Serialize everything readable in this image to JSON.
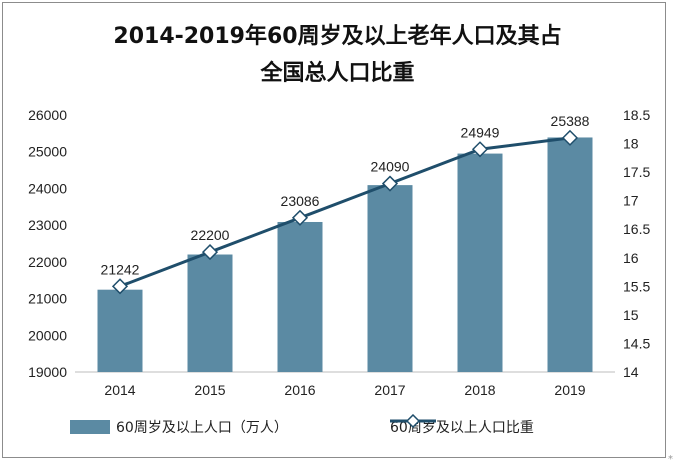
{
  "title_line1": "2014-2019年60周岁及以上老年人口及其占",
  "title_line2": "全国总人口比重",
  "corner_mark": "*",
  "chart_data": {
    "type": "bar",
    "title": "2014-2019年60周岁及以上老年人口及其占全国总人口比重",
    "categories": [
      "2014",
      "2015",
      "2016",
      "2017",
      "2018",
      "2019"
    ],
    "series": [
      {
        "name": "60周岁及以上人口（万人）",
        "type": "bar",
        "axis": "left",
        "values": [
          21242,
          22200,
          23086,
          24090,
          24949,
          25388
        ],
        "data_labels": [
          "21242",
          "22200",
          "23086",
          "24090",
          "24949",
          "25388"
        ],
        "color": "#5b8aa3"
      },
      {
        "name": "60周岁及以上人口比重",
        "type": "line",
        "axis": "right",
        "values": [
          15.5,
          16.1,
          16.7,
          17.3,
          17.9,
          18.1
        ],
        "color": "#1f4e6b",
        "marker": "diamond"
      }
    ],
    "yleft": {
      "min": 19000,
      "max": 26000,
      "ticks": [
        "19000",
        "20000",
        "21000",
        "22000",
        "23000",
        "24000",
        "25000",
        "26000"
      ]
    },
    "yright": {
      "min": 14,
      "max": 18.5,
      "ticks": [
        "14",
        "14.5",
        "15",
        "15.5",
        "16",
        "16.5",
        "17",
        "17.5",
        "18",
        "18.5"
      ]
    },
    "grid": false,
    "legend": "bottom"
  }
}
